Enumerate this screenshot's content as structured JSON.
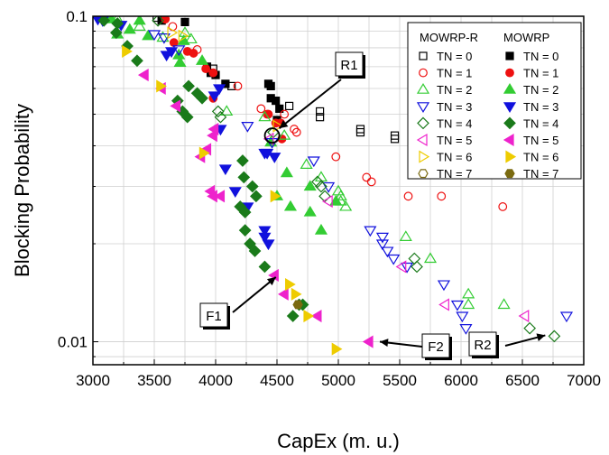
{
  "chart_data": {
    "type": "scatter",
    "xlabel": "CapEx (m. u.)",
    "ylabel": "Blocking Probability",
    "xlim": [
      3000,
      7000
    ],
    "ylim": [
      0.0085,
      0.1
    ],
    "yscale": "log",
    "x_ticks": [
      3000,
      3500,
      4000,
      4500,
      5000,
      5500,
      6000,
      6500,
      7000
    ],
    "x_tick_labels": [
      "3000",
      "3500",
      "4000",
      "4500",
      "5000",
      "5500",
      "6000",
      "6500",
      "7000"
    ],
    "y_ticks": [
      0.01,
      0.1
    ],
    "y_tick_labels": [
      "0.01",
      "0.1"
    ],
    "grid": true,
    "legend": {
      "placement": "top-right",
      "headers": [
        "MOWRP-R",
        "MOWRP"
      ],
      "labels": [
        "TN = 0",
        "TN = 1",
        "TN = 2",
        "TN = 3",
        "TN = 4",
        "TN = 5",
        "TN = 6",
        "TN = 7"
      ]
    },
    "series": [
      {
        "name": "TN = 0",
        "method": "MOWRP-R",
        "marker": "square",
        "color": "#000000",
        "filled": false,
        "points": [
          [
            3520,
            0.099
          ],
          [
            3980,
            0.069
          ],
          [
            4130,
            0.061
          ],
          [
            4600,
            0.053
          ],
          [
            4850,
            0.051
          ],
          [
            4850,
            0.049
          ],
          [
            5180,
            0.045
          ],
          [
            5180,
            0.044
          ],
          [
            5460,
            0.043
          ],
          [
            5460,
            0.042
          ]
        ]
      },
      {
        "name": "TN = 0",
        "method": "MOWRP",
        "marker": "square",
        "color": "#000000",
        "filled": true,
        "points": [
          [
            3560,
            0.097
          ],
          [
            3750,
            0.096
          ],
          [
            3930,
            0.07
          ],
          [
            3960,
            0.067
          ],
          [
            4000,
            0.066
          ],
          [
            4080,
            0.062
          ],
          [
            4430,
            0.062
          ],
          [
            4450,
            0.061
          ],
          [
            4450,
            0.056
          ],
          [
            4490,
            0.055
          ],
          [
            4520,
            0.052
          ],
          [
            4500,
            0.048
          ]
        ]
      },
      {
        "name": "TN = 1",
        "method": "MOWRP-R",
        "marker": "circle",
        "color": "#ee1111",
        "filled": false,
        "points": [
          [
            3650,
            0.093
          ],
          [
            3850,
            0.079
          ],
          [
            4180,
            0.061
          ],
          [
            4370,
            0.052
          ],
          [
            4420,
            0.05
          ],
          [
            4560,
            0.05
          ],
          [
            4640,
            0.045
          ],
          [
            4660,
            0.044
          ],
          [
            4980,
            0.037
          ],
          [
            5230,
            0.032
          ],
          [
            5270,
            0.031
          ],
          [
            5570,
            0.028
          ],
          [
            5840,
            0.028
          ],
          [
            6340,
            0.026
          ]
        ]
      },
      {
        "name": "TN = 1",
        "method": "MOWRP",
        "marker": "circle",
        "color": "#ee1111",
        "filled": true,
        "points": [
          [
            3590,
            0.098
          ],
          [
            3660,
            0.083
          ],
          [
            3770,
            0.078
          ],
          [
            3820,
            0.077
          ],
          [
            3920,
            0.069
          ],
          [
            3980,
            0.067
          ],
          [
            3980,
            0.056
          ],
          [
            4430,
            0.05
          ],
          [
            4490,
            0.047
          ],
          [
            4530,
            0.047
          ],
          [
            4540,
            0.042
          ]
        ]
      },
      {
        "name": "TN = 2",
        "method": "MOWRP-R",
        "marker": "triangle-up",
        "color": "#33cc33",
        "filled": false,
        "points": [
          [
            3200,
            0.098
          ],
          [
            3380,
            0.093
          ],
          [
            3570,
            0.086
          ],
          [
            3750,
            0.089
          ],
          [
            3800,
            0.085
          ],
          [
            4090,
            0.051
          ],
          [
            4400,
            0.049
          ],
          [
            4560,
            0.043
          ],
          [
            4740,
            0.035
          ],
          [
            4860,
            0.032
          ],
          [
            5000,
            0.029
          ],
          [
            5020,
            0.028
          ],
          [
            5020,
            0.027
          ],
          [
            5060,
            0.026
          ],
          [
            5550,
            0.021
          ],
          [
            5750,
            0.018
          ],
          [
            6060,
            0.014
          ],
          [
            6060,
            0.013
          ],
          [
            6350,
            0.013
          ]
        ]
      },
      {
        "name": "TN = 2",
        "method": "MOWRP",
        "marker": "triangle-up",
        "color": "#33cc33",
        "filled": true,
        "points": [
          [
            3150,
            0.098
          ],
          [
            3380,
            0.097
          ],
          [
            3300,
            0.091
          ],
          [
            3200,
            0.088
          ],
          [
            3450,
            0.087
          ],
          [
            3700,
            0.076
          ],
          [
            3740,
            0.084
          ],
          [
            3890,
            0.073
          ],
          [
            3710,
            0.072
          ],
          [
            4450,
            0.041
          ],
          [
            4580,
            0.033
          ],
          [
            4770,
            0.03
          ],
          [
            4500,
            0.028
          ],
          [
            4980,
            0.027
          ],
          [
            4610,
            0.026
          ],
          [
            4770,
            0.025
          ],
          [
            4860,
            0.022
          ]
        ]
      },
      {
        "name": "TN = 3",
        "method": "MOWRP-R",
        "marker": "triangle-down",
        "color": "#1111dd",
        "filled": false,
        "points": [
          [
            3500,
            0.088
          ],
          [
            3580,
            0.086
          ],
          [
            3700,
            0.079
          ],
          [
            4260,
            0.046
          ],
          [
            4460,
            0.041
          ],
          [
            4800,
            0.036
          ],
          [
            4920,
            0.03
          ],
          [
            5260,
            0.022
          ],
          [
            5360,
            0.021
          ],
          [
            5360,
            0.02
          ],
          [
            5400,
            0.019
          ],
          [
            5450,
            0.018
          ],
          [
            5560,
            0.017
          ],
          [
            5860,
            0.015
          ],
          [
            5970,
            0.013
          ],
          [
            6010,
            0.012
          ],
          [
            6040,
            0.011
          ],
          [
            6860,
            0.012
          ]
        ]
      },
      {
        "name": "TN = 3",
        "method": "MOWRP",
        "marker": "triangle-down",
        "color": "#1111dd",
        "filled": true,
        "points": [
          [
            3040,
            0.098
          ],
          [
            3080,
            0.097
          ],
          [
            3230,
            0.094
          ],
          [
            3640,
            0.078
          ],
          [
            3600,
            0.076
          ],
          [
            4040,
            0.045
          ],
          [
            4030,
            0.06
          ],
          [
            3990,
            0.057
          ],
          [
            4400,
            0.038
          ],
          [
            4420,
            0.038
          ],
          [
            4480,
            0.037
          ],
          [
            4080,
            0.034
          ],
          [
            4160,
            0.029
          ],
          [
            4260,
            0.026
          ],
          [
            4400,
            0.022
          ],
          [
            4430,
            0.02
          ],
          [
            4400,
            0.021
          ]
        ]
      },
      {
        "name": "TN = 4",
        "method": "MOWRP-R",
        "marker": "diamond",
        "color": "#1a7a1a",
        "filled": false,
        "points": [
          [
            3530,
            0.097
          ],
          [
            4020,
            0.051
          ],
          [
            4040,
            0.049
          ],
          [
            4470,
            0.044
          ],
          [
            4830,
            0.031
          ],
          [
            4860,
            0.03
          ],
          [
            4890,
            0.028
          ],
          [
            5620,
            0.018
          ],
          [
            5640,
            0.017
          ],
          [
            6560,
            0.011
          ],
          [
            6760,
            0.0104
          ]
        ]
      },
      {
        "name": "TN = 4",
        "method": "MOWRP",
        "marker": "diamond",
        "color": "#1a7a1a",
        "filled": true,
        "points": [
          [
            3090,
            0.097
          ],
          [
            3200,
            0.095
          ],
          [
            3190,
            0.089
          ],
          [
            3280,
            0.081
          ],
          [
            3360,
            0.073
          ],
          [
            3780,
            0.061
          ],
          [
            3850,
            0.058
          ],
          [
            3890,
            0.056
          ],
          [
            3690,
            0.055
          ],
          [
            3730,
            0.051
          ],
          [
            3770,
            0.049
          ],
          [
            4220,
            0.036
          ],
          [
            4230,
            0.032
          ],
          [
            4300,
            0.03
          ],
          [
            4330,
            0.028
          ],
          [
            4200,
            0.026
          ],
          [
            4240,
            0.025
          ],
          [
            4240,
            0.022
          ],
          [
            4280,
            0.02
          ],
          [
            4320,
            0.019
          ],
          [
            4400,
            0.017
          ],
          [
            4680,
            0.013
          ],
          [
            4710,
            0.013
          ],
          [
            4630,
            0.012
          ]
        ]
      },
      {
        "name": "TN = 5",
        "method": "MOWRP-R",
        "marker": "triangle-left",
        "color": "#ee22cc",
        "filled": false,
        "points": [
          [
            4440,
            0.042
          ],
          [
            4920,
            0.027
          ],
          [
            5520,
            0.017
          ],
          [
            5870,
            0.013
          ],
          [
            6520,
            0.012
          ]
        ]
      },
      {
        "name": "TN = 5",
        "method": "MOWRP",
        "marker": "triangle-left",
        "color": "#ee22cc",
        "filled": true,
        "points": [
          [
            3420,
            0.066
          ],
          [
            3560,
            0.06
          ],
          [
            3680,
            0.053
          ],
          [
            3990,
            0.045
          ],
          [
            3980,
            0.043
          ],
          [
            3930,
            0.039
          ],
          [
            3880,
            0.037
          ],
          [
            3960,
            0.029
          ],
          [
            3980,
            0.028
          ],
          [
            4040,
            0.028
          ],
          [
            4480,
            0.016
          ],
          [
            4560,
            0.014
          ],
          [
            4830,
            0.012
          ],
          [
            5250,
            0.01
          ]
        ]
      },
      {
        "name": "TN = 6",
        "method": "MOWRP-R",
        "marker": "triangle-right",
        "color": "#eecc00",
        "filled": false,
        "points": [
          [
            3640,
            0.089
          ],
          [
            3730,
            0.087
          ],
          [
            4500,
            0.046
          ]
        ]
      },
      {
        "name": "TN = 6",
        "method": "MOWRP",
        "marker": "triangle-right",
        "color": "#eecc00",
        "filled": true,
        "points": [
          [
            3270,
            0.078
          ],
          [
            3550,
            0.061
          ],
          [
            3900,
            0.038
          ],
          [
            4480,
            0.028
          ],
          [
            4600,
            0.015
          ],
          [
            4650,
            0.014
          ],
          [
            4750,
            0.012
          ],
          [
            4980,
            0.0095
          ]
        ]
      },
      {
        "name": "TN = 7",
        "method": "MOWRP-R",
        "marker": "hexagon",
        "color": "#7a6a10",
        "filled": false,
        "points": []
      },
      {
        "name": "TN = 7",
        "method": "MOWRP",
        "marker": "hexagon",
        "color": "#7a6a10",
        "filled": true,
        "points": [
          [
            4670,
            0.013
          ]
        ]
      }
    ],
    "annotations": [
      {
        "label": "R1",
        "target": [
          4460,
          0.043
        ],
        "note": "circled point"
      },
      {
        "label": "F1",
        "target": [
          4520,
          0.016
        ]
      },
      {
        "label": "F2",
        "target": [
          5250,
          0.01
        ]
      },
      {
        "label": "R2",
        "target": [
          6760,
          0.0104
        ]
      }
    ]
  }
}
